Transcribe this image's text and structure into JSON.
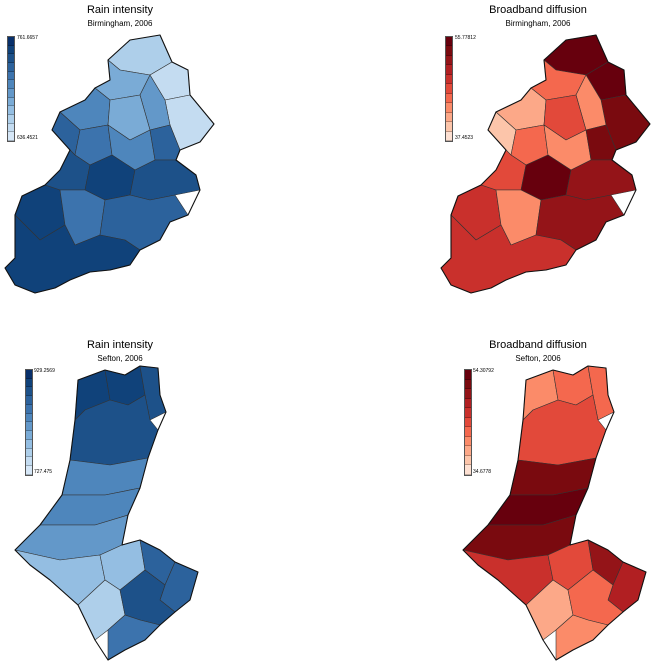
{
  "colors": {
    "blue_scale": [
      "#d6e7f7",
      "#c4dcf1",
      "#aecfea",
      "#94bee2",
      "#7aabd6",
      "#6398c9",
      "#4e86bc",
      "#3c73ad",
      "#2c629c",
      "#1d5189",
      "#10427a",
      "#08306b"
    ],
    "red_scale": [
      "#fde0d2",
      "#fcc5aa",
      "#fca888",
      "#fb8b69",
      "#f4684e",
      "#e2493a",
      "#c9302c",
      "#b11f22",
      "#941418",
      "#7a0a0f",
      "#67000d"
    ]
  },
  "panels": [
    {
      "title": "Rain intensity",
      "subtitle": "Birmingham, 2006",
      "legend_max": "761.6657",
      "legend_min": "636.4521",
      "palette": "blue"
    },
    {
      "title": "Broadband diffusion",
      "subtitle": "Birmingham, 2006",
      "legend_max": "55.77812",
      "legend_min": "37.4523",
      "palette": "red"
    },
    {
      "title": "Rain intensity",
      "subtitle": "Sefton, 2006",
      "legend_max": "929.2569",
      "legend_min": "727.475",
      "palette": "blue"
    },
    {
      "title": "Broadband diffusion",
      "subtitle": "Sefton, 2006",
      "legend_max": "54.30792",
      "legend_min": "34.6778",
      "palette": "red"
    }
  ],
  "maps": {
    "birmingham_blue_levels": [
      0.15,
      0.1,
      0.05,
      0.35,
      0.45,
      0.55,
      0.4,
      0.7,
      0.6,
      0.5,
      0.75,
      0.85,
      0.9,
      0.8,
      0.95,
      0.65,
      0.7,
      0.9
    ],
    "birmingham_red_levels": [
      1.0,
      0.95,
      0.9,
      0.4,
      0.3,
      0.2,
      0.45,
      0.1,
      0.35,
      0.25,
      0.85,
      0.5,
      0.98,
      0.75,
      0.55,
      0.3,
      0.8,
      0.6
    ],
    "sefton_blue_levels": [
      0.95,
      0.9,
      0.85,
      0.8,
      0.55,
      0.5,
      0.45,
      0.3,
      0.25,
      0.15,
      0.75,
      0.7,
      0.8,
      0.6
    ],
    "sefton_red_levels": [
      0.3,
      0.35,
      0.4,
      0.45,
      0.9,
      0.95,
      0.85,
      0.55,
      0.5,
      0.2,
      0.75,
      0.65,
      0.4,
      0.25
    ]
  }
}
